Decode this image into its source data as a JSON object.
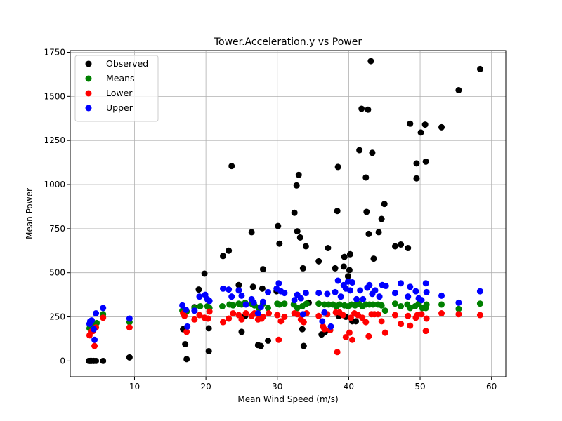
{
  "chart_data": {
    "type": "scatter",
    "title": "Tower.Acceleration.y vs Power",
    "xlabel": "Mean Wind Speed (m/s)",
    "ylabel": "Mean Power",
    "xlim": [
      1,
      62
    ],
    "ylim": [
      -90,
      1760
    ],
    "xticks": [
      10,
      20,
      30,
      40,
      50,
      60
    ],
    "yticks": [
      0,
      250,
      500,
      750,
      1000,
      1250,
      1500,
      1750
    ],
    "grid": true,
    "legend_position": "top-left",
    "series": [
      {
        "name": "Observed",
        "color": "#000000",
        "points": [
          [
            3.6,
            0
          ],
          [
            3.8,
            0
          ],
          [
            4.0,
            0
          ],
          [
            4.3,
            0
          ],
          [
            4.6,
            0
          ],
          [
            5.6,
            0
          ],
          [
            9.3,
            20
          ],
          [
            16.8,
            180
          ],
          [
            17.1,
            95
          ],
          [
            17.3,
            10
          ],
          [
            18.4,
            305
          ],
          [
            19.0,
            405
          ],
          [
            19.8,
            495
          ],
          [
            20.4,
            55
          ],
          [
            20.4,
            185
          ],
          [
            22.4,
            595
          ],
          [
            23.2,
            625
          ],
          [
            23.6,
            1105
          ],
          [
            24.6,
            430
          ],
          [
            25.0,
            165
          ],
          [
            25.5,
            255
          ],
          [
            26.4,
            730
          ],
          [
            26.6,
            420
          ],
          [
            27.3,
            90
          ],
          [
            27.7,
            85
          ],
          [
            27.9,
            410
          ],
          [
            28.0,
            520
          ],
          [
            28.7,
            115
          ],
          [
            29.9,
            395
          ],
          [
            30.1,
            765
          ],
          [
            30.3,
            665
          ],
          [
            32.4,
            840
          ],
          [
            32.7,
            995
          ],
          [
            32.8,
            735
          ],
          [
            33.0,
            1055
          ],
          [
            33.2,
            700
          ],
          [
            33.5,
            180
          ],
          [
            33.6,
            525
          ],
          [
            33.7,
            85
          ],
          [
            34.0,
            650
          ],
          [
            34.4,
            330
          ],
          [
            35.8,
            565
          ],
          [
            36.2,
            150
          ],
          [
            36.7,
            165
          ],
          [
            37.1,
            640
          ],
          [
            37.4,
            175
          ],
          [
            38.1,
            525
          ],
          [
            38.4,
            850
          ],
          [
            38.5,
            1100
          ],
          [
            38.6,
            255
          ],
          [
            39.3,
            535
          ],
          [
            39.4,
            590
          ],
          [
            39.6,
            250
          ],
          [
            39.9,
            480
          ],
          [
            40.1,
            515
          ],
          [
            40.2,
            605
          ],
          [
            40.5,
            225
          ],
          [
            41.0,
            225
          ],
          [
            41.5,
            1195
          ],
          [
            41.8,
            1430
          ],
          [
            42.4,
            1040
          ],
          [
            42.5,
            845
          ],
          [
            42.7,
            1425
          ],
          [
            42.8,
            720
          ],
          [
            43.1,
            1700
          ],
          [
            43.3,
            1180
          ],
          [
            43.5,
            580
          ],
          [
            44.2,
            730
          ],
          [
            44.6,
            805
          ],
          [
            45.0,
            890
          ],
          [
            46.5,
            650
          ],
          [
            47.3,
            660
          ],
          [
            48.3,
            640
          ],
          [
            48.6,
            1345
          ],
          [
            49.5,
            1035
          ],
          [
            49.5,
            1120
          ],
          [
            50.1,
            1295
          ],
          [
            50.7,
            1340
          ],
          [
            50.8,
            1130
          ],
          [
            53.0,
            1325
          ],
          [
            55.4,
            1535
          ],
          [
            58.4,
            1655
          ]
        ]
      },
      {
        "name": "Means",
        "color": "#008000",
        "points": [
          [
            3.7,
            185
          ],
          [
            4.1,
            200
          ],
          [
            4.4,
            190
          ],
          [
            4.7,
            215
          ],
          [
            5.6,
            265
          ],
          [
            9.3,
            220
          ],
          [
            16.7,
            285
          ],
          [
            17.3,
            280
          ],
          [
            18.4,
            300
          ],
          [
            19.2,
            310
          ],
          [
            20.2,
            310
          ],
          [
            20.5,
            300
          ],
          [
            22.3,
            310
          ],
          [
            23.3,
            320
          ],
          [
            23.8,
            315
          ],
          [
            24.6,
            325
          ],
          [
            25.0,
            320
          ],
          [
            25.5,
            330
          ],
          [
            26.4,
            325
          ],
          [
            26.8,
            315
          ],
          [
            27.4,
            300
          ],
          [
            28.0,
            325
          ],
          [
            28.7,
            300
          ],
          [
            30.0,
            325
          ],
          [
            30.3,
            320
          ],
          [
            31.0,
            325
          ],
          [
            32.3,
            320
          ],
          [
            32.8,
            300
          ],
          [
            33.5,
            310
          ],
          [
            34.1,
            325
          ],
          [
            35.8,
            325
          ],
          [
            36.6,
            320
          ],
          [
            37.2,
            320
          ],
          [
            37.8,
            320
          ],
          [
            38.3,
            310
          ],
          [
            38.7,
            320
          ],
          [
            39.4,
            315
          ],
          [
            39.9,
            310
          ],
          [
            40.4,
            320
          ],
          [
            40.9,
            315
          ],
          [
            41.4,
            325
          ],
          [
            41.9,
            310
          ],
          [
            42.4,
            320
          ],
          [
            42.9,
            320
          ],
          [
            43.4,
            320
          ],
          [
            44.1,
            320
          ],
          [
            44.6,
            315
          ],
          [
            45.1,
            285
          ],
          [
            46.5,
            325
          ],
          [
            47.3,
            310
          ],
          [
            48.2,
            320
          ],
          [
            48.6,
            300
          ],
          [
            49.3,
            310
          ],
          [
            49.8,
            325
          ],
          [
            50.3,
            300
          ],
          [
            50.8,
            300
          ],
          [
            50.9,
            320
          ],
          [
            53.0,
            320
          ],
          [
            55.4,
            295
          ],
          [
            58.4,
            325
          ]
        ]
      },
      {
        "name": "Lower",
        "color": "#ff0000",
        "points": [
          [
            3.7,
            145
          ],
          [
            3.9,
            165
          ],
          [
            4.2,
            170
          ],
          [
            4.4,
            85
          ],
          [
            4.6,
            190
          ],
          [
            5.6,
            245
          ],
          [
            9.3,
            190
          ],
          [
            16.8,
            270
          ],
          [
            17.0,
            255
          ],
          [
            17.3,
            165
          ],
          [
            18.4,
            235
          ],
          [
            19.1,
            260
          ],
          [
            19.8,
            245
          ],
          [
            20.3,
            240
          ],
          [
            20.5,
            280
          ],
          [
            22.4,
            220
          ],
          [
            23.2,
            240
          ],
          [
            23.8,
            270
          ],
          [
            24.6,
            260
          ],
          [
            25.0,
            235
          ],
          [
            25.6,
            270
          ],
          [
            26.4,
            255
          ],
          [
            26.8,
            270
          ],
          [
            27.3,
            235
          ],
          [
            27.8,
            240
          ],
          [
            28.0,
            250
          ],
          [
            28.8,
            270
          ],
          [
            30.0,
            260
          ],
          [
            30.2,
            120
          ],
          [
            30.5,
            225
          ],
          [
            31.0,
            250
          ],
          [
            32.4,
            270
          ],
          [
            32.8,
            265
          ],
          [
            33.3,
            235
          ],
          [
            33.7,
            220
          ],
          [
            34.1,
            270
          ],
          [
            35.8,
            255
          ],
          [
            36.4,
            195
          ],
          [
            36.6,
            180
          ],
          [
            37.0,
            265
          ],
          [
            37.4,
            175
          ],
          [
            38.2,
            275
          ],
          [
            38.4,
            50
          ],
          [
            38.7,
            275
          ],
          [
            39.2,
            260
          ],
          [
            39.6,
            135
          ],
          [
            40.1,
            160
          ],
          [
            40.3,
            245
          ],
          [
            40.5,
            120
          ],
          [
            40.8,
            270
          ],
          [
            41.3,
            260
          ],
          [
            41.9,
            245
          ],
          [
            42.4,
            220
          ],
          [
            42.8,
            140
          ],
          [
            43.2,
            265
          ],
          [
            43.6,
            265
          ],
          [
            44.1,
            265
          ],
          [
            44.6,
            225
          ],
          [
            45.1,
            160
          ],
          [
            46.5,
            260
          ],
          [
            47.3,
            210
          ],
          [
            48.3,
            255
          ],
          [
            48.6,
            200
          ],
          [
            49.4,
            245
          ],
          [
            49.6,
            260
          ],
          [
            50.2,
            265
          ],
          [
            50.8,
            170
          ],
          [
            50.9,
            240
          ],
          [
            53.0,
            270
          ],
          [
            55.4,
            265
          ],
          [
            58.4,
            260
          ]
        ]
      },
      {
        "name": "Upper",
        "color": "#0000ff",
        "points": [
          [
            3.7,
            210
          ],
          [
            3.8,
            225
          ],
          [
            4.0,
            230
          ],
          [
            4.3,
            180
          ],
          [
            4.4,
            120
          ],
          [
            4.6,
            270
          ],
          [
            5.6,
            300
          ],
          [
            9.3,
            240
          ],
          [
            16.7,
            315
          ],
          [
            17.2,
            290
          ],
          [
            17.4,
            195
          ],
          [
            18.4,
            285
          ],
          [
            19.1,
            365
          ],
          [
            19.9,
            375
          ],
          [
            20.2,
            350
          ],
          [
            20.5,
            340
          ],
          [
            22.4,
            410
          ],
          [
            23.2,
            405
          ],
          [
            23.6,
            365
          ],
          [
            24.6,
            400
          ],
          [
            25.0,
            370
          ],
          [
            25.6,
            320
          ],
          [
            26.4,
            350
          ],
          [
            26.7,
            330
          ],
          [
            27.3,
            270
          ],
          [
            27.7,
            305
          ],
          [
            28.0,
            335
          ],
          [
            28.7,
            390
          ],
          [
            29.9,
            410
          ],
          [
            30.2,
            440
          ],
          [
            30.5,
            395
          ],
          [
            31.0,
            385
          ],
          [
            32.4,
            345
          ],
          [
            32.8,
            375
          ],
          [
            33.3,
            355
          ],
          [
            33.6,
            265
          ],
          [
            34.0,
            385
          ],
          [
            35.8,
            385
          ],
          [
            36.3,
            225
          ],
          [
            36.6,
            275
          ],
          [
            37.0,
            380
          ],
          [
            37.5,
            195
          ],
          [
            38.1,
            390
          ],
          [
            38.5,
            455
          ],
          [
            38.9,
            365
          ],
          [
            39.3,
            430
          ],
          [
            39.6,
            410
          ],
          [
            39.9,
            450
          ],
          [
            40.2,
            400
          ],
          [
            40.5,
            445
          ],
          [
            41.1,
            350
          ],
          [
            41.6,
            400
          ],
          [
            42.0,
            350
          ],
          [
            42.6,
            415
          ],
          [
            42.9,
            430
          ],
          [
            43.3,
            380
          ],
          [
            43.7,
            400
          ],
          [
            44.3,
            365
          ],
          [
            44.7,
            430
          ],
          [
            45.2,
            425
          ],
          [
            46.5,
            385
          ],
          [
            47.3,
            440
          ],
          [
            48.3,
            365
          ],
          [
            48.6,
            420
          ],
          [
            49.4,
            395
          ],
          [
            49.8,
            355
          ],
          [
            50.2,
            345
          ],
          [
            50.8,
            440
          ],
          [
            50.9,
            390
          ],
          [
            53.0,
            370
          ],
          [
            55.4,
            330
          ],
          [
            58.4,
            395
          ]
        ]
      }
    ]
  }
}
